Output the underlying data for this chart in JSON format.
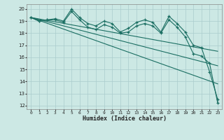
{
  "xlabel": "Humidex (Indice chaleur)",
  "bg_color": "#cce8e4",
  "grid_color": "#aacccc",
  "line_color": "#1a6e62",
  "xlim": [
    -0.5,
    23.5
  ],
  "ylim": [
    11.7,
    20.4
  ],
  "yticks": [
    12,
    13,
    14,
    15,
    16,
    17,
    18,
    19,
    20
  ],
  "xticks": [
    0,
    1,
    2,
    3,
    4,
    5,
    6,
    7,
    8,
    9,
    10,
    11,
    12,
    13,
    14,
    15,
    16,
    17,
    18,
    19,
    20,
    21,
    22,
    23
  ],
  "line1_x": [
    0,
    1,
    2,
    3,
    4,
    5,
    6,
    7,
    8,
    9,
    10,
    11,
    12,
    13,
    14,
    15,
    16,
    17,
    18,
    19,
    20,
    21,
    22,
    23
  ],
  "line1_y": [
    19.3,
    19.0,
    19.1,
    19.2,
    19.0,
    20.0,
    19.3,
    18.8,
    18.6,
    19.0,
    18.8,
    18.1,
    18.4,
    18.9,
    19.1,
    18.9,
    18.1,
    19.4,
    18.8,
    18.1,
    17.0,
    16.8,
    14.8,
    12.5
  ],
  "line2_x": [
    0,
    1,
    2,
    3,
    4,
    5,
    6,
    7,
    8,
    9,
    10,
    11,
    12,
    13,
    14,
    15,
    16,
    17,
    18,
    19,
    20,
    21,
    22,
    23
  ],
  "line2_y": [
    19.3,
    19.0,
    19.1,
    19.1,
    18.9,
    19.8,
    19.1,
    18.5,
    18.3,
    18.7,
    18.5,
    18.0,
    18.1,
    18.6,
    18.8,
    18.6,
    18.0,
    19.1,
    18.5,
    17.7,
    16.3,
    16.1,
    15.5,
    12.2
  ],
  "line3_x": [
    0,
    23
  ],
  "line3_y": [
    19.3,
    16.5
  ],
  "line4_x": [
    0,
    23
  ],
  "line4_y": [
    19.3,
    15.3
  ],
  "line5_x": [
    0,
    23
  ],
  "line5_y": [
    19.3,
    13.8
  ]
}
